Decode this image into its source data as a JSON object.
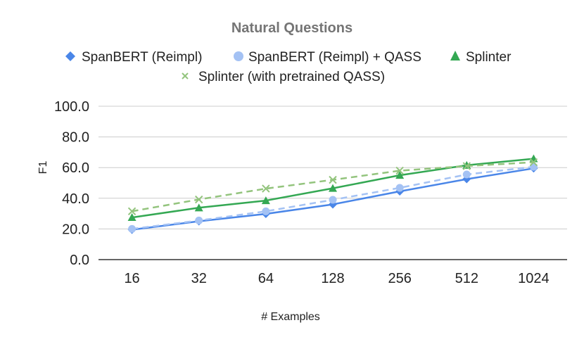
{
  "chart_data": {
    "type": "line",
    "title": "Natural Questions",
    "xlabel": "# Examples",
    "ylabel": "F1",
    "categories": [
      "16",
      "32",
      "64",
      "128",
      "256",
      "512",
      "1024"
    ],
    "ylim": [
      0,
      100
    ],
    "yticks": [
      "100.0",
      "80.0",
      "60.0",
      "40.0",
      "20.0",
      "0.0"
    ],
    "ytick_values": [
      100,
      80,
      60,
      40,
      20,
      0
    ],
    "grid": true,
    "legend_position": "top",
    "series": [
      {
        "name": "SpanBERT (Reimpl)",
        "values": [
          19.5,
          25.0,
          29.8,
          36.0,
          44.5,
          52.5,
          59.5
        ],
        "color": "#4A86E8",
        "marker": "diamond",
        "dash": false
      },
      {
        "name": "SpanBERT (Reimpl) + QASS",
        "values": [
          20.0,
          25.5,
          31.5,
          39.0,
          46.8,
          55.5,
          60.5
        ],
        "color": "#A4C2F4",
        "marker": "circle",
        "dash": true
      },
      {
        "name": "Splinter",
        "values": [
          27.5,
          33.8,
          38.5,
          46.5,
          55.0,
          61.5,
          65.8
        ],
        "color": "#34A853",
        "marker": "triangle",
        "dash": false
      },
      {
        "name": "Splinter (with pretrained QASS)",
        "values": [
          31.5,
          39.2,
          46.3,
          52.0,
          58.0,
          61.0,
          63.5
        ],
        "color": "#93C47D",
        "marker": "x",
        "dash": true
      }
    ]
  }
}
